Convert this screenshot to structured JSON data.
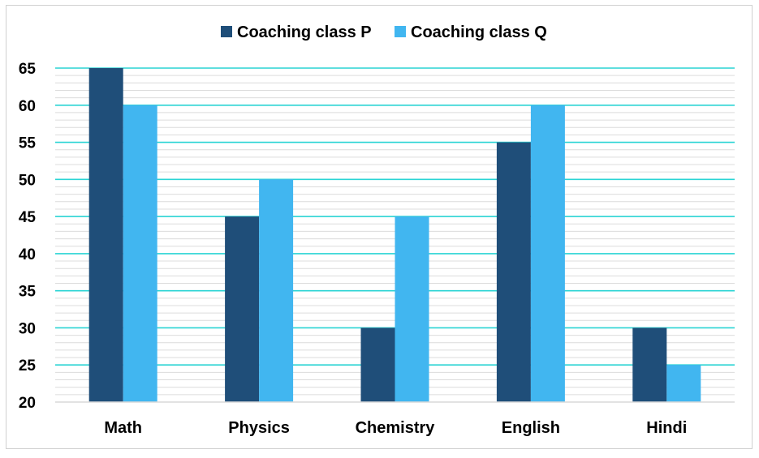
{
  "chart_data": {
    "type": "bar",
    "categories": [
      "Math",
      "Physics",
      "Chemistry",
      "English",
      "Hindi"
    ],
    "series": [
      {
        "name": "Coaching class P",
        "values": [
          65,
          45,
          30,
          55,
          30
        ],
        "color": "#1f4e79"
      },
      {
        "name": "Coaching class Q",
        "values": [
          60,
          50,
          45,
          60,
          25
        ],
        "color": "#41b6f0"
      }
    ],
    "title": "",
    "xlabel": "",
    "ylabel": "",
    "ylim": [
      20,
      65
    ],
    "yticks": [
      20,
      25,
      30,
      35,
      40,
      45,
      50,
      55,
      60,
      65
    ],
    "grid": true,
    "major_grid_color": "#2ad4d4",
    "minor_grid_color": "#dcdcdc",
    "legend_position": "top-center"
  }
}
